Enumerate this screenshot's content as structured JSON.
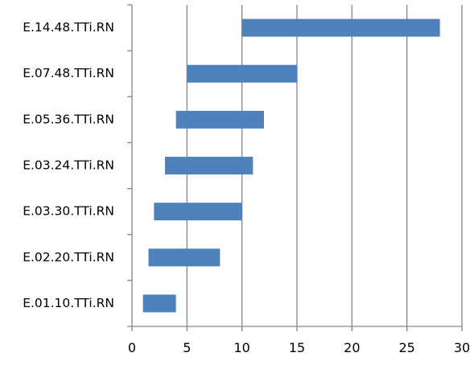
{
  "chart_data": {
    "type": "bar",
    "orientation": "horizontal",
    "style": "floating-range",
    "categories": [
      "E.14.48.TTi.RN",
      "E.07.48.TTi.RN",
      "E.05.36.TTi.RN",
      "E.03.24.TTi.RN",
      "E.03.30.TTi.RN",
      "E.02.20.TTi.RN",
      "E.01.10.TTi.RN"
    ],
    "ranges": [
      [
        10,
        28
      ],
      [
        5,
        15
      ],
      [
        4,
        12
      ],
      [
        3,
        11
      ],
      [
        2,
        10
      ],
      [
        1.5,
        8
      ],
      [
        1,
        4
      ]
    ],
    "xlim": [
      0,
      30
    ],
    "xticks": [
      "0",
      "5",
      "10",
      "15",
      "20",
      "25",
      "30"
    ],
    "title": "",
    "xlabel": "",
    "ylabel": "",
    "grid": "vertical",
    "legend": "none",
    "colors": {
      "bar": "#4f81bd",
      "grid": "#868686",
      "axis": "#868686"
    }
  }
}
